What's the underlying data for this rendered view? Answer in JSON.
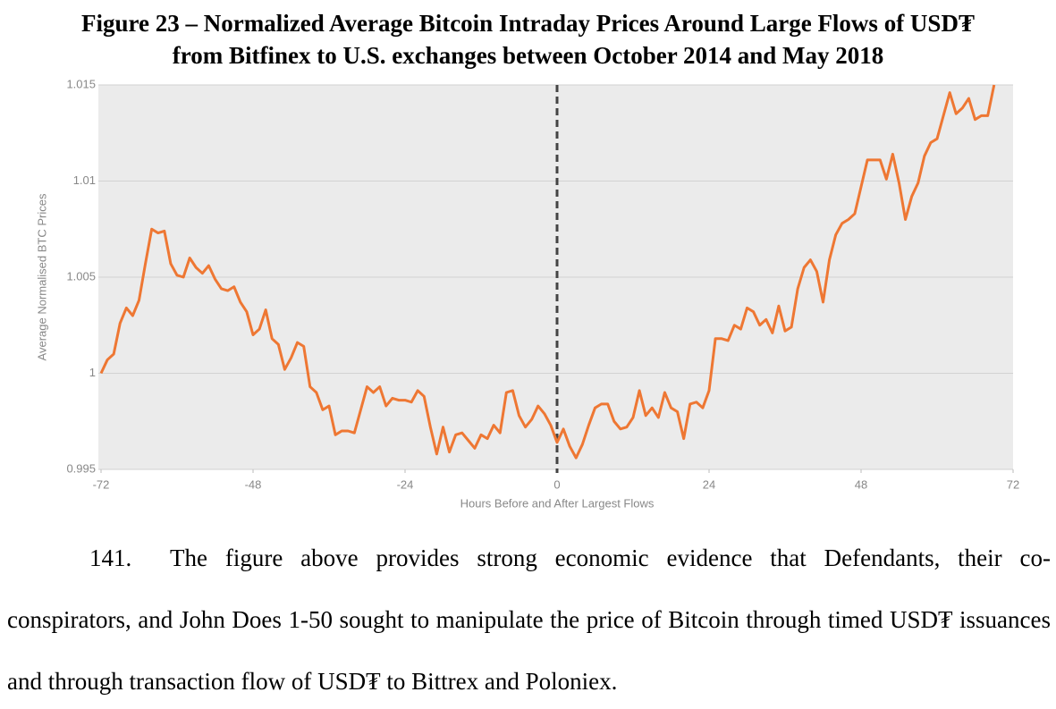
{
  "title": [
    "Figure 23 – Normalized Average Bitcoin Intraday Prices Around Large Flows of USD₮",
    "from Bitfinex to U.S. exchanges between October 2014 and May 2018"
  ],
  "chart_data": {
    "type": "line",
    "x_label": "Hours Before and After Largest Flows",
    "y_label": "Average Normalised BTC Prices",
    "x": [
      -72,
      -71,
      -70,
      -69,
      -68,
      -67,
      -66,
      -65,
      -64,
      -63,
      -62,
      -61,
      -60,
      -59,
      -58,
      -57,
      -56,
      -55,
      -54,
      -53,
      -52,
      -51,
      -50,
      -49,
      -48,
      -47,
      -46,
      -45,
      -44,
      -43,
      -42,
      -41,
      -40,
      -39,
      -38,
      -37,
      -36,
      -35,
      -34,
      -33,
      -32,
      -31,
      -30,
      -29,
      -28,
      -27,
      -26,
      -25,
      -24,
      -23,
      -22,
      -21,
      -20,
      -19,
      -18,
      -17,
      -16,
      -15,
      -14,
      -13,
      -12,
      -11,
      -10,
      -9,
      -8,
      -7,
      -6,
      -5,
      -4,
      -3,
      -2,
      -1,
      0,
      1,
      2,
      3,
      4,
      5,
      6,
      7,
      8,
      9,
      10,
      11,
      12,
      13,
      14,
      15,
      16,
      17,
      18,
      19,
      20,
      21,
      22,
      23,
      24,
      25,
      26,
      27,
      28,
      29,
      30,
      31,
      32,
      33,
      34,
      35,
      36,
      37,
      38,
      39,
      40,
      41,
      42,
      43,
      44,
      45,
      46,
      47,
      48,
      49,
      50,
      51,
      52,
      53,
      54,
      55,
      56,
      57,
      58,
      59,
      60,
      61,
      62,
      63,
      64,
      65,
      66,
      67,
      68,
      69
    ],
    "series": [
      {
        "color": "#ee7733",
        "values": [
          1.0,
          1.0007,
          1.001,
          1.0026,
          1.0034,
          1.003,
          1.0038,
          1.0057,
          1.0075,
          1.0073,
          1.0074,
          1.0057,
          1.0051,
          1.005,
          1.006,
          1.0055,
          1.0052,
          1.0056,
          1.0049,
          1.0044,
          1.0043,
          1.0045,
          1.0037,
          1.0032,
          1.002,
          1.0023,
          1.0033,
          1.0018,
          1.0015,
          1.0002,
          1.0008,
          1.0016,
          1.0014,
          0.9993,
          0.999,
          0.9981,
          0.9983,
          0.9968,
          0.997,
          0.997,
          0.9969,
          0.9981,
          0.9993,
          0.999,
          0.9993,
          0.9983,
          0.9987,
          0.9986,
          0.9986,
          0.9985,
          0.9991,
          0.9988,
          0.9972,
          0.9958,
          0.9972,
          0.9959,
          0.9968,
          0.9969,
          0.9965,
          0.9961,
          0.9968,
          0.9966,
          0.9973,
          0.9969,
          0.999,
          0.9991,
          0.9978,
          0.9972,
          0.9976,
          0.9983,
          0.9979,
          0.9973,
          0.9964,
          0.9971,
          0.9962,
          0.9956,
          0.9963,
          0.9973,
          0.9982,
          0.9984,
          0.9984,
          0.9975,
          0.9971,
          0.9972,
          0.9977,
          0.9991,
          0.9978,
          0.9982,
          0.9977,
          0.999,
          0.9982,
          0.998,
          0.9966,
          0.9984,
          0.9985,
          0.9982,
          0.9991,
          1.0018,
          1.0018,
          1.0017,
          1.0025,
          1.0023,
          1.0034,
          1.0032,
          1.0025,
          1.0028,
          1.0021,
          1.0035,
          1.0022,
          1.0024,
          1.0044,
          1.0055,
          1.0059,
          1.0053,
          1.0037,
          1.0059,
          1.0072,
          1.0078,
          1.008,
          1.0083,
          1.0097,
          1.0111,
          1.0111,
          1.0111,
          1.0101,
          1.0114,
          1.0099,
          1.008,
          1.0092,
          1.0099,
          1.0113,
          1.012,
          1.0122,
          1.0134,
          1.0146,
          1.0135,
          1.0138,
          1.0143,
          1.0132,
          1.0134,
          1.0134,
          1.015
        ]
      }
    ],
    "xlim": [
      -72,
      72
    ],
    "xticks": [
      -72,
      -48,
      -24,
      0,
      24,
      48,
      72
    ],
    "ylim": [
      0.995,
      1.015
    ],
    "yticks": [
      0.995,
      1,
      1.005,
      1.01,
      1.015
    ],
    "grid": true,
    "vline": 0
  },
  "paragraph": {
    "number": "141.",
    "text": "The figure above provides strong economic evidence that Defendants, their co-conspirators, and John Does 1-50 sought to manipulate the price of Bitcoin through timed USD₮ issuances and through transaction flow of USD₮ to Bittrex and Poloniex."
  }
}
